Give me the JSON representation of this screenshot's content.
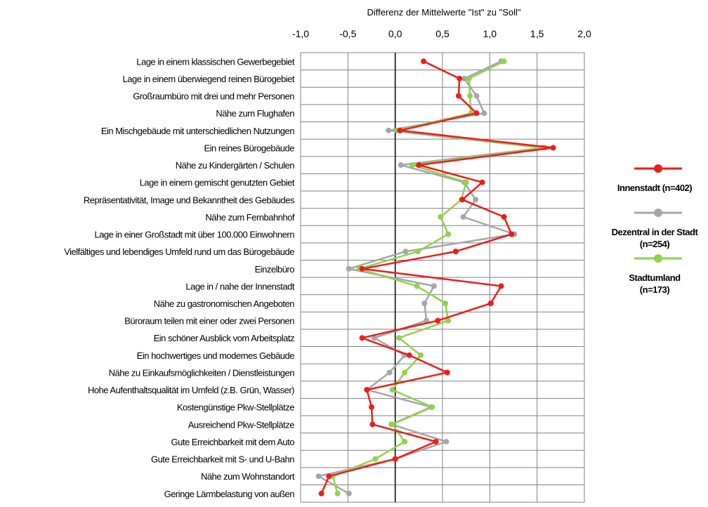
{
  "chart_data": {
    "type": "line",
    "xlabel": "Differenz der Mittelwerte \"Ist\" zu \"Soll\"",
    "xlim": [
      -1.0,
      2.0
    ],
    "x_ticks": [
      "-1,0",
      "-0,5",
      "0,0",
      "0,5",
      "1,0",
      "1,5",
      "2,0"
    ],
    "grid": true,
    "legend_position": "right",
    "categories": [
      "Lage in einem klassischen Gewerbegebiet",
      "Lage in einem überwiegend reinen Bürogebiet",
      "Großraumbüro mit drei und mehr Personen",
      "Nähe zum Flughafen",
      "Ein Mischgebäude mit unterschiedlichen Nutzungen",
      "Ein reines Bürogebäude",
      "Nähe zu Kindergärten / Schulen",
      "Lage in einem gemischt genutzten Gebiet",
      "Repräsentativität, Image und Bekanntheit des Gebäudes",
      "Nähe zum Fernbahnhof",
      "Lage in einer Großstadt mit über 100.000 Einwohnern",
      "Vielfältiges und lebendiges Umfeld rund um das Bürogebäude",
      "Einzelbüro",
      "Lage in / nahe der Innenstadt",
      "Nähe zu gastronomischen Angeboten",
      "Büroraum teilen mit einer oder zwei Personen",
      "Ein schöner Ausblick vom Arbeitsplatz",
      "Ein hochwertiges und modernes Gebäude",
      "Nähe zu Einkaufsmöglichkeiten / Dienstleistungen",
      "Hohe Aufenthaltsqualität im Umfeld (z.B. Grün, Wasser)",
      "Kostengünstige Pkw-Stellplätze",
      "Ausreichend Pkw-Stellplätze",
      "Gute Erreichbarkeit mit dem Auto",
      "Gute Erreichbarkeit mit S- und U-Bahn",
      "Nähe zum Wohnstandort",
      "Geringe Lärmbelastung von außen"
    ],
    "series": [
      {
        "name": "Innenstadt (n=402)",
        "color": "#ee1c1c",
        "values": [
          0.3,
          0.68,
          0.67,
          0.86,
          0.05,
          1.67,
          0.25,
          0.92,
          0.71,
          1.15,
          1.23,
          0.64,
          -0.35,
          1.12,
          1.01,
          0.45,
          -0.35,
          0.15,
          0.55,
          -0.3,
          -0.25,
          -0.24,
          0.43,
          0.0,
          -0.7,
          -0.78
        ]
      },
      {
        "name": "Dezentral in der Stadt\n(n=254)",
        "color": "#a6a6a6",
        "values": [
          1.12,
          0.73,
          0.86,
          0.94,
          -0.07,
          1.56,
          0.06,
          0.73,
          0.85,
          0.72,
          1.26,
          0.11,
          -0.49,
          0.41,
          0.31,
          0.33,
          -0.22,
          0.1,
          -0.06,
          -0.3,
          0.38,
          -0.04,
          0.54,
          0.0,
          -0.81,
          -0.49
        ]
      },
      {
        "name": "Stadtumland\n(n=173)",
        "color": "#92d050",
        "values": [
          1.15,
          0.78,
          0.79,
          0.8,
          0.02,
          1.58,
          0.18,
          0.75,
          0.7,
          0.48,
          0.56,
          0.24,
          -0.38,
          0.23,
          0.53,
          0.56,
          0.04,
          0.27,
          0.1,
          -0.03,
          0.39,
          -0.03,
          0.1,
          -0.21,
          -0.66,
          -0.61
        ]
      }
    ]
  }
}
